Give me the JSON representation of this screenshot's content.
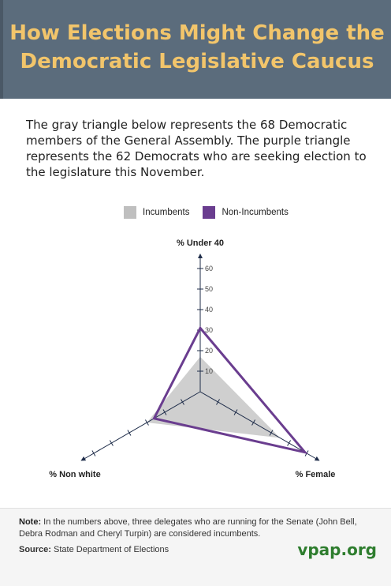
{
  "title_line1": "How Elections Might Change the",
  "title_line2": "Democratic Legislative Caucus",
  "intro": "The gray triangle below represents the 68 Democratic members of the General Assembly. The purple triangle represents the 62 Democrats who are seeking election to the legislature this November.",
  "legend": {
    "incumbents": "Incumbents",
    "non_incumbents": "Non-Incumbents"
  },
  "colors": {
    "header_bg": "#5b6c7c",
    "title": "#f2c56b",
    "incumbents_fill": "#bfbfbf",
    "non_incumbents_stroke": "#6a3d8f",
    "brand": "#2e7d2e"
  },
  "chart_data": {
    "type": "radar",
    "axes": [
      "% Under 40",
      "% Female",
      "% Non white"
    ],
    "axis_ticks": [
      10,
      20,
      30,
      40,
      50,
      60
    ],
    "range": [
      0,
      60
    ],
    "grid": false,
    "legend_position": "top",
    "series": [
      {
        "name": "Incumbents",
        "values": [
          17,
          45,
          30
        ]
      },
      {
        "name": "Non-Incumbents",
        "values": [
          31,
          59,
          26
        ]
      }
    ]
  },
  "footer": {
    "note_label": "Note:",
    "note_text": "In the numbers above, three delegates who are running for the Senate (John Bell, Debra Rodman and Cheryl Turpin) are considered incumbents.",
    "source_label": "Source:",
    "source_text": "State Department of Elections",
    "brand": "vpap.org"
  }
}
